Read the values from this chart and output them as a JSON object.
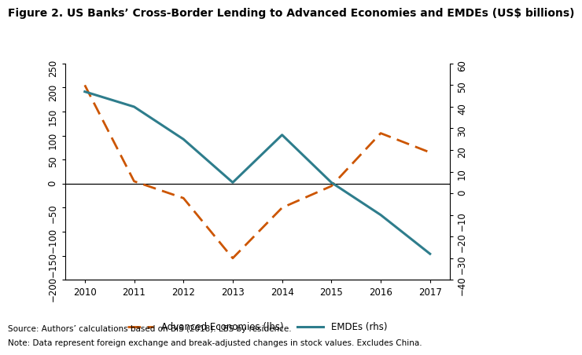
{
  "title": "Figure 2. US Banks’ Cross-Border Lending to Advanced Economies and EMDEs (US$ billions)",
  "years": [
    2010,
    2011,
    2012,
    2013,
    2014,
    2015,
    2016,
    2017
  ],
  "adv_econ": [
    205,
    5,
    -30,
    -155,
    -50,
    -5,
    105,
    65
  ],
  "emdes": [
    47,
    40,
    25,
    5,
    27,
    5,
    -10,
    -28
  ],
  "adv_color": "#cc5500",
  "emde_color": "#2e7d8c",
  "lhs_ylim": [
    -200,
    250
  ],
  "lhs_yticks": [
    -200,
    -150,
    -100,
    -50,
    0,
    50,
    100,
    150,
    200,
    250
  ],
  "rhs_ylim": [
    -40,
    60
  ],
  "rhs_yticks": [
    -40,
    -30,
    -20,
    -10,
    0,
    10,
    20,
    30,
    40,
    50,
    60
  ],
  "source_text": "Source: Authors’ calculations based on BIS (2018). LBS by residence.",
  "note_text": "Note: Data represent foreign exchange and break-adjusted changes in stock values. Excludes China.",
  "legend_adv": "Advanced Economies (lhs)",
  "legend_emde": "EMDEs (rhs)",
  "background_color": "#ffffff",
  "title_fontsize": 10,
  "axis_fontsize": 8.5,
  "footer_fontsize": 7.5
}
